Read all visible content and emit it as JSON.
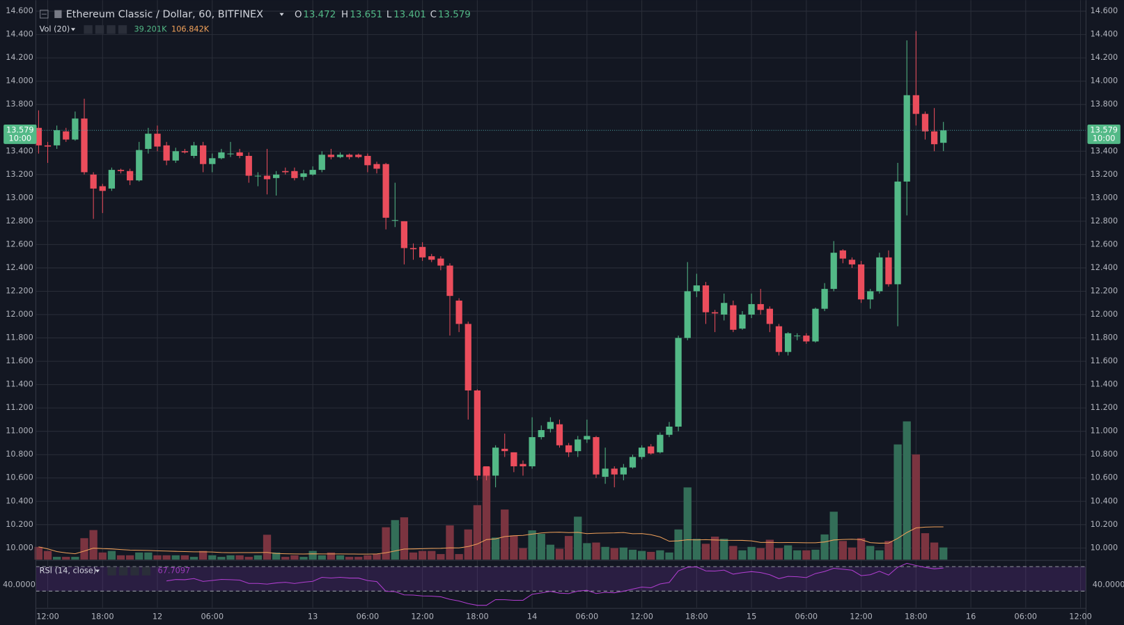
{
  "chart_data": {
    "type": "candlestick",
    "title": "Ethereum Classic / Dollar, 60, BITFINEX",
    "ohlc_labels": [
      "O",
      "H",
      "L",
      "C"
    ],
    "open": [
      13.6,
      13.45,
      13.45,
      13.57,
      13.5,
      13.68,
      13.2,
      13.1,
      13.08,
      13.24,
      13.23,
      13.15,
      13.42,
      13.55,
      13.45,
      13.32,
      13.4,
      13.36,
      13.45,
      13.29,
      13.34,
      13.38,
      13.39,
      13.36,
      13.19,
      13.19,
      13.17,
      13.23,
      13.23,
      13.18,
      13.2,
      13.24,
      13.37,
      13.35,
      13.37,
      13.37,
      13.36,
      13.29,
      13.29,
      12.81,
      12.8,
      12.57,
      12.58,
      12.5,
      12.48,
      12.42,
      12.12,
      11.92,
      11.35,
      10.7,
      10.62,
      10.85,
      10.82,
      10.72,
      10.7,
      10.95,
      11.02,
      11.06,
      10.88,
      10.83,
      10.93,
      10.95,
      10.61,
      10.68,
      10.63,
      10.69,
      10.78,
      10.87,
      10.82,
      10.97,
      11.04,
      11.8,
      12.2,
      12.25,
      12.02,
      12.0,
      12.08,
      11.88,
      12.0,
      12.09,
      12.05,
      11.9,
      11.68,
      11.82,
      11.82,
      11.77,
      12.05,
      12.22,
      12.55,
      12.47,
      12.43,
      12.13,
      12.2,
      12.49,
      12.26,
      13.14,
      13.88,
      13.72,
      13.57,
      13.472
    ],
    "high": [
      13.75,
      13.48,
      13.62,
      13.6,
      13.74,
      13.85,
      13.22,
      13.12,
      13.26,
      13.25,
      13.25,
      13.48,
      13.6,
      13.62,
      13.48,
      13.43,
      13.42,
      13.48,
      13.48,
      13.38,
      13.42,
      13.48,
      13.42,
      13.39,
      13.22,
      13.42,
      13.23,
      13.26,
      13.26,
      13.24,
      13.27,
      13.4,
      13.42,
      13.39,
      13.38,
      13.38,
      13.38,
      13.31,
      13.3,
      13.13,
      12.8,
      12.61,
      12.62,
      12.52,
      12.5,
      12.44,
      12.14,
      11.94,
      11.36,
      10.7,
      10.88,
      10.98,
      10.82,
      10.75,
      11.12,
      11.05,
      11.12,
      11.1,
      10.9,
      10.96,
      11.1,
      10.96,
      10.86,
      10.7,
      10.72,
      10.8,
      10.88,
      10.89,
      10.99,
      11.08,
      11.82,
      12.45,
      12.35,
      12.28,
      12.04,
      12.18,
      12.12,
      12.03,
      12.18,
      12.22,
      12.07,
      11.92,
      11.85,
      11.84,
      11.84,
      12.06,
      12.27,
      12.63,
      12.56,
      12.49,
      12.46,
      12.22,
      12.53,
      12.55,
      13.3,
      14.35,
      14.43,
      13.74,
      13.77,
      13.651
    ],
    "low": [
      13.38,
      13.3,
      13.42,
      13.48,
      13.49,
      13.2,
      12.82,
      12.87,
      13.06,
      13.21,
      13.11,
      13.14,
      13.38,
      13.4,
      13.28,
      13.3,
      13.38,
      13.34,
      13.22,
      13.22,
      13.33,
      13.35,
      13.34,
      13.13,
      13.1,
      13.03,
      13.02,
      13.2,
      13.15,
      13.15,
      13.19,
      13.22,
      13.33,
      13.34,
      13.33,
      13.34,
      13.22,
      13.21,
      12.73,
      12.75,
      12.43,
      12.47,
      12.46,
      12.45,
      12.38,
      11.82,
      11.85,
      11.1,
      10.58,
      10.58,
      10.52,
      10.78,
      10.65,
      10.62,
      10.68,
      10.93,
      10.99,
      10.86,
      10.78,
      10.78,
      10.9,
      10.6,
      10.55,
      10.52,
      10.58,
      10.68,
      10.76,
      10.8,
      10.81,
      10.95,
      11.0,
      11.78,
      12.15,
      11.92,
      11.85,
      11.95,
      11.85,
      11.87,
      11.97,
      12.0,
      11.85,
      11.65,
      11.65,
      11.78,
      11.75,
      11.76,
      12.03,
      12.2,
      12.44,
      12.4,
      12.1,
      12.05,
      12.18,
      12.24,
      11.9,
      12.85,
      13.62,
      13.5,
      13.4,
      13.401
    ],
    "close": [
      13.45,
      13.44,
      13.58,
      13.5,
      13.68,
      13.22,
      13.08,
      13.06,
      13.24,
      13.23,
      13.15,
      13.41,
      13.55,
      13.44,
      13.32,
      13.4,
      13.39,
      13.45,
      13.29,
      13.34,
      13.39,
      13.38,
      13.36,
      13.19,
      13.19,
      13.16,
      13.2,
      13.22,
      13.17,
      13.21,
      13.24,
      13.37,
      13.35,
      13.37,
      13.35,
      13.35,
      13.28,
      13.25,
      12.83,
      12.81,
      12.57,
      12.56,
      12.49,
      12.47,
      12.42,
      12.16,
      11.92,
      11.35,
      10.62,
      10.62,
      10.86,
      10.83,
      10.7,
      10.7,
      10.95,
      11.01,
      11.08,
      10.88,
      10.82,
      10.93,
      10.96,
      10.63,
      10.68,
      10.63,
      10.69,
      10.78,
      10.86,
      10.81,
      10.97,
      11.04,
      11.8,
      12.2,
      12.25,
      12.02,
      12.01,
      12.1,
      11.87,
      12.0,
      12.09,
      12.04,
      11.92,
      11.68,
      11.84,
      11.82,
      11.77,
      12.05,
      12.22,
      12.53,
      12.48,
      12.43,
      12.13,
      12.2,
      12.49,
      12.26,
      13.14,
      13.88,
      13.72,
      13.57,
      13.46,
      13.579
    ],
    "up_color": "#53b987",
    "down_color": "#eb4d5c",
    "xlim": [
      -0.3,
      114.6
    ],
    "xticks": [
      {
        "value": 1,
        "label": "12:00"
      },
      {
        "value": 7,
        "label": "18:00"
      },
      {
        "value": 13,
        "label": "12"
      },
      {
        "value": 19,
        "label": "06:00"
      },
      {
        "value": 30,
        "label": "13"
      },
      {
        "value": 36,
        "label": "06:00"
      },
      {
        "value": 42,
        "label": "12:00"
      },
      {
        "value": 48,
        "label": "18:00"
      },
      {
        "value": 54,
        "label": "14"
      },
      {
        "value": 60,
        "label": "06:00"
      },
      {
        "value": 66,
        "label": "12:00"
      },
      {
        "value": 72,
        "label": "18:00"
      },
      {
        "value": 78,
        "label": "15"
      },
      {
        "value": 84,
        "label": "06:00"
      },
      {
        "value": 90,
        "label": "12:00"
      },
      {
        "value": 96,
        "label": "18:00"
      },
      {
        "value": 102,
        "label": "16"
      },
      {
        "value": 108,
        "label": "06:00"
      },
      {
        "value": 114,
        "label": "12:00"
      }
    ],
    "ylim": [
      9.9,
      14.67
    ],
    "yticks": [
      {
        "value": 10,
        "label": "10.000"
      },
      {
        "value": 10.2,
        "label": "10.200"
      },
      {
        "value": 10.4,
        "label": "10.400"
      },
      {
        "value": 10.6,
        "label": "10.600"
      },
      {
        "value": 10.8,
        "label": "10.800"
      },
      {
        "value": 11,
        "label": "11.000"
      },
      {
        "value": 11.2,
        "label": "11.200"
      },
      {
        "value": 11.4,
        "label": "11.400"
      },
      {
        "value": 11.6,
        "label": "11.600"
      },
      {
        "value": 11.8,
        "label": "11.800"
      },
      {
        "value": 12,
        "label": "12.000"
      },
      {
        "value": 12.2,
        "label": "12.200"
      },
      {
        "value": 12.4,
        "label": "12.400"
      },
      {
        "value": 12.6,
        "label": "12.600"
      },
      {
        "value": 12.8,
        "label": "12.800"
      },
      {
        "value": 13,
        "label": "13.000"
      },
      {
        "value": 13.2,
        "label": "13.200"
      },
      {
        "value": 13.4,
        "label": "13.400"
      },
      {
        "value": 13.8,
        "label": "13.800"
      },
      {
        "value": 14,
        "label": "14.000"
      },
      {
        "value": 14.2,
        "label": "14.200"
      },
      {
        "value": 14.4,
        "label": "14.400"
      },
      {
        "value": 14.6,
        "label": "14.600"
      }
    ],
    "grid": true,
    "countdown": "10:00",
    "volume": {
      "name": "Vol (20)",
      "label": "39.201K",
      "ma_label": "106.842K",
      "ma_color": "#f0a15a",
      "up_color": "#336e58",
      "down_color": "#7b3440",
      "values": [
        41,
        28,
        9,
        9,
        9,
        69,
        95,
        23,
        28,
        14,
        14,
        23,
        23,
        14,
        14,
        14,
        14,
        9,
        28,
        14,
        9,
        14,
        14,
        9,
        14,
        80,
        23,
        9,
        14,
        9,
        28,
        14,
        23,
        14,
        9,
        9,
        14,
        18,
        104,
        127,
        136,
        23,
        28,
        28,
        18,
        110,
        18,
        97,
        175,
        297,
        71,
        161,
        78,
        37,
        94,
        83,
        48,
        35,
        76,
        138,
        53,
        55,
        41,
        37,
        39,
        32,
        28,
        25,
        30,
        23,
        97,
        232,
        67,
        51,
        74,
        67,
        44,
        30,
        41,
        37,
        64,
        37,
        46,
        30,
        30,
        32,
        81,
        154,
        60,
        39,
        69,
        44,
        30,
        60,
        370,
        444,
        338,
        85,
        55,
        39.201
      ]
    },
    "rsi": {
      "name": "RSI (14, close)",
      "label": "67.7097",
      "color": "#b13ed1",
      "ylim": [
        3,
        79
      ],
      "yticks": [
        {
          "value": 40,
          "label": "40.0000"
        }
      ],
      "bands": [
        30,
        70
      ]
    }
  }
}
